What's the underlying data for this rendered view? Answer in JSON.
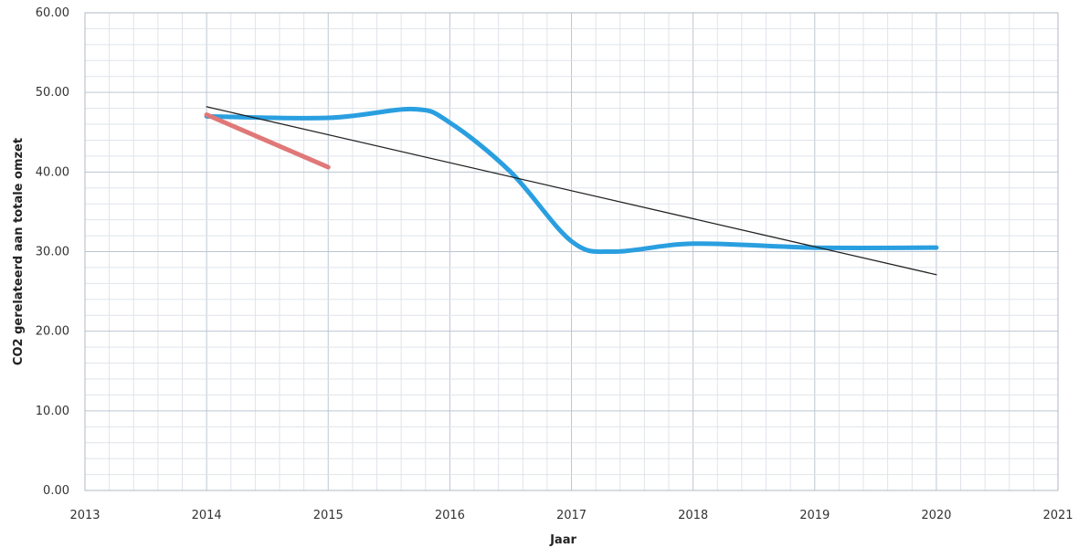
{
  "chart_data": {
    "type": "line",
    "title": "",
    "xlabel": "Jaar",
    "ylabel": "CO2 gerelateerd aan totale omzet",
    "xlim": [
      2013,
      2021
    ],
    "ylim": [
      0,
      60
    ],
    "x_ticks": [
      "2013",
      "2014",
      "2015",
      "2016",
      "2017",
      "2018",
      "2019",
      "2020",
      "2021"
    ],
    "y_ticks": [
      "0.00",
      "10.00",
      "20.00",
      "30.00",
      "40.00",
      "50.00",
      "60.00"
    ],
    "grid": true,
    "legend": "none",
    "series": [
      {
        "color": "#2a9fe0",
        "smooth": true,
        "points": [
          [
            2014,
            47.0
          ],
          [
            2015,
            46.8
          ],
          [
            2015.7,
            47.9
          ],
          [
            2016,
            46.2
          ],
          [
            2016.5,
            40.0
          ],
          [
            2017,
            31.3
          ],
          [
            2017.35,
            30.0
          ],
          [
            2018,
            31.0
          ],
          [
            2019,
            30.5
          ],
          [
            2020,
            30.5
          ]
        ]
      },
      {
        "color": "#e07878",
        "smooth": false,
        "points": [
          [
            2014,
            47.2
          ],
          [
            2015,
            40.6
          ]
        ]
      },
      {
        "color": "#222222",
        "smooth": false,
        "points": [
          [
            2014,
            48.2
          ],
          [
            2020,
            27.1
          ]
        ]
      }
    ]
  }
}
